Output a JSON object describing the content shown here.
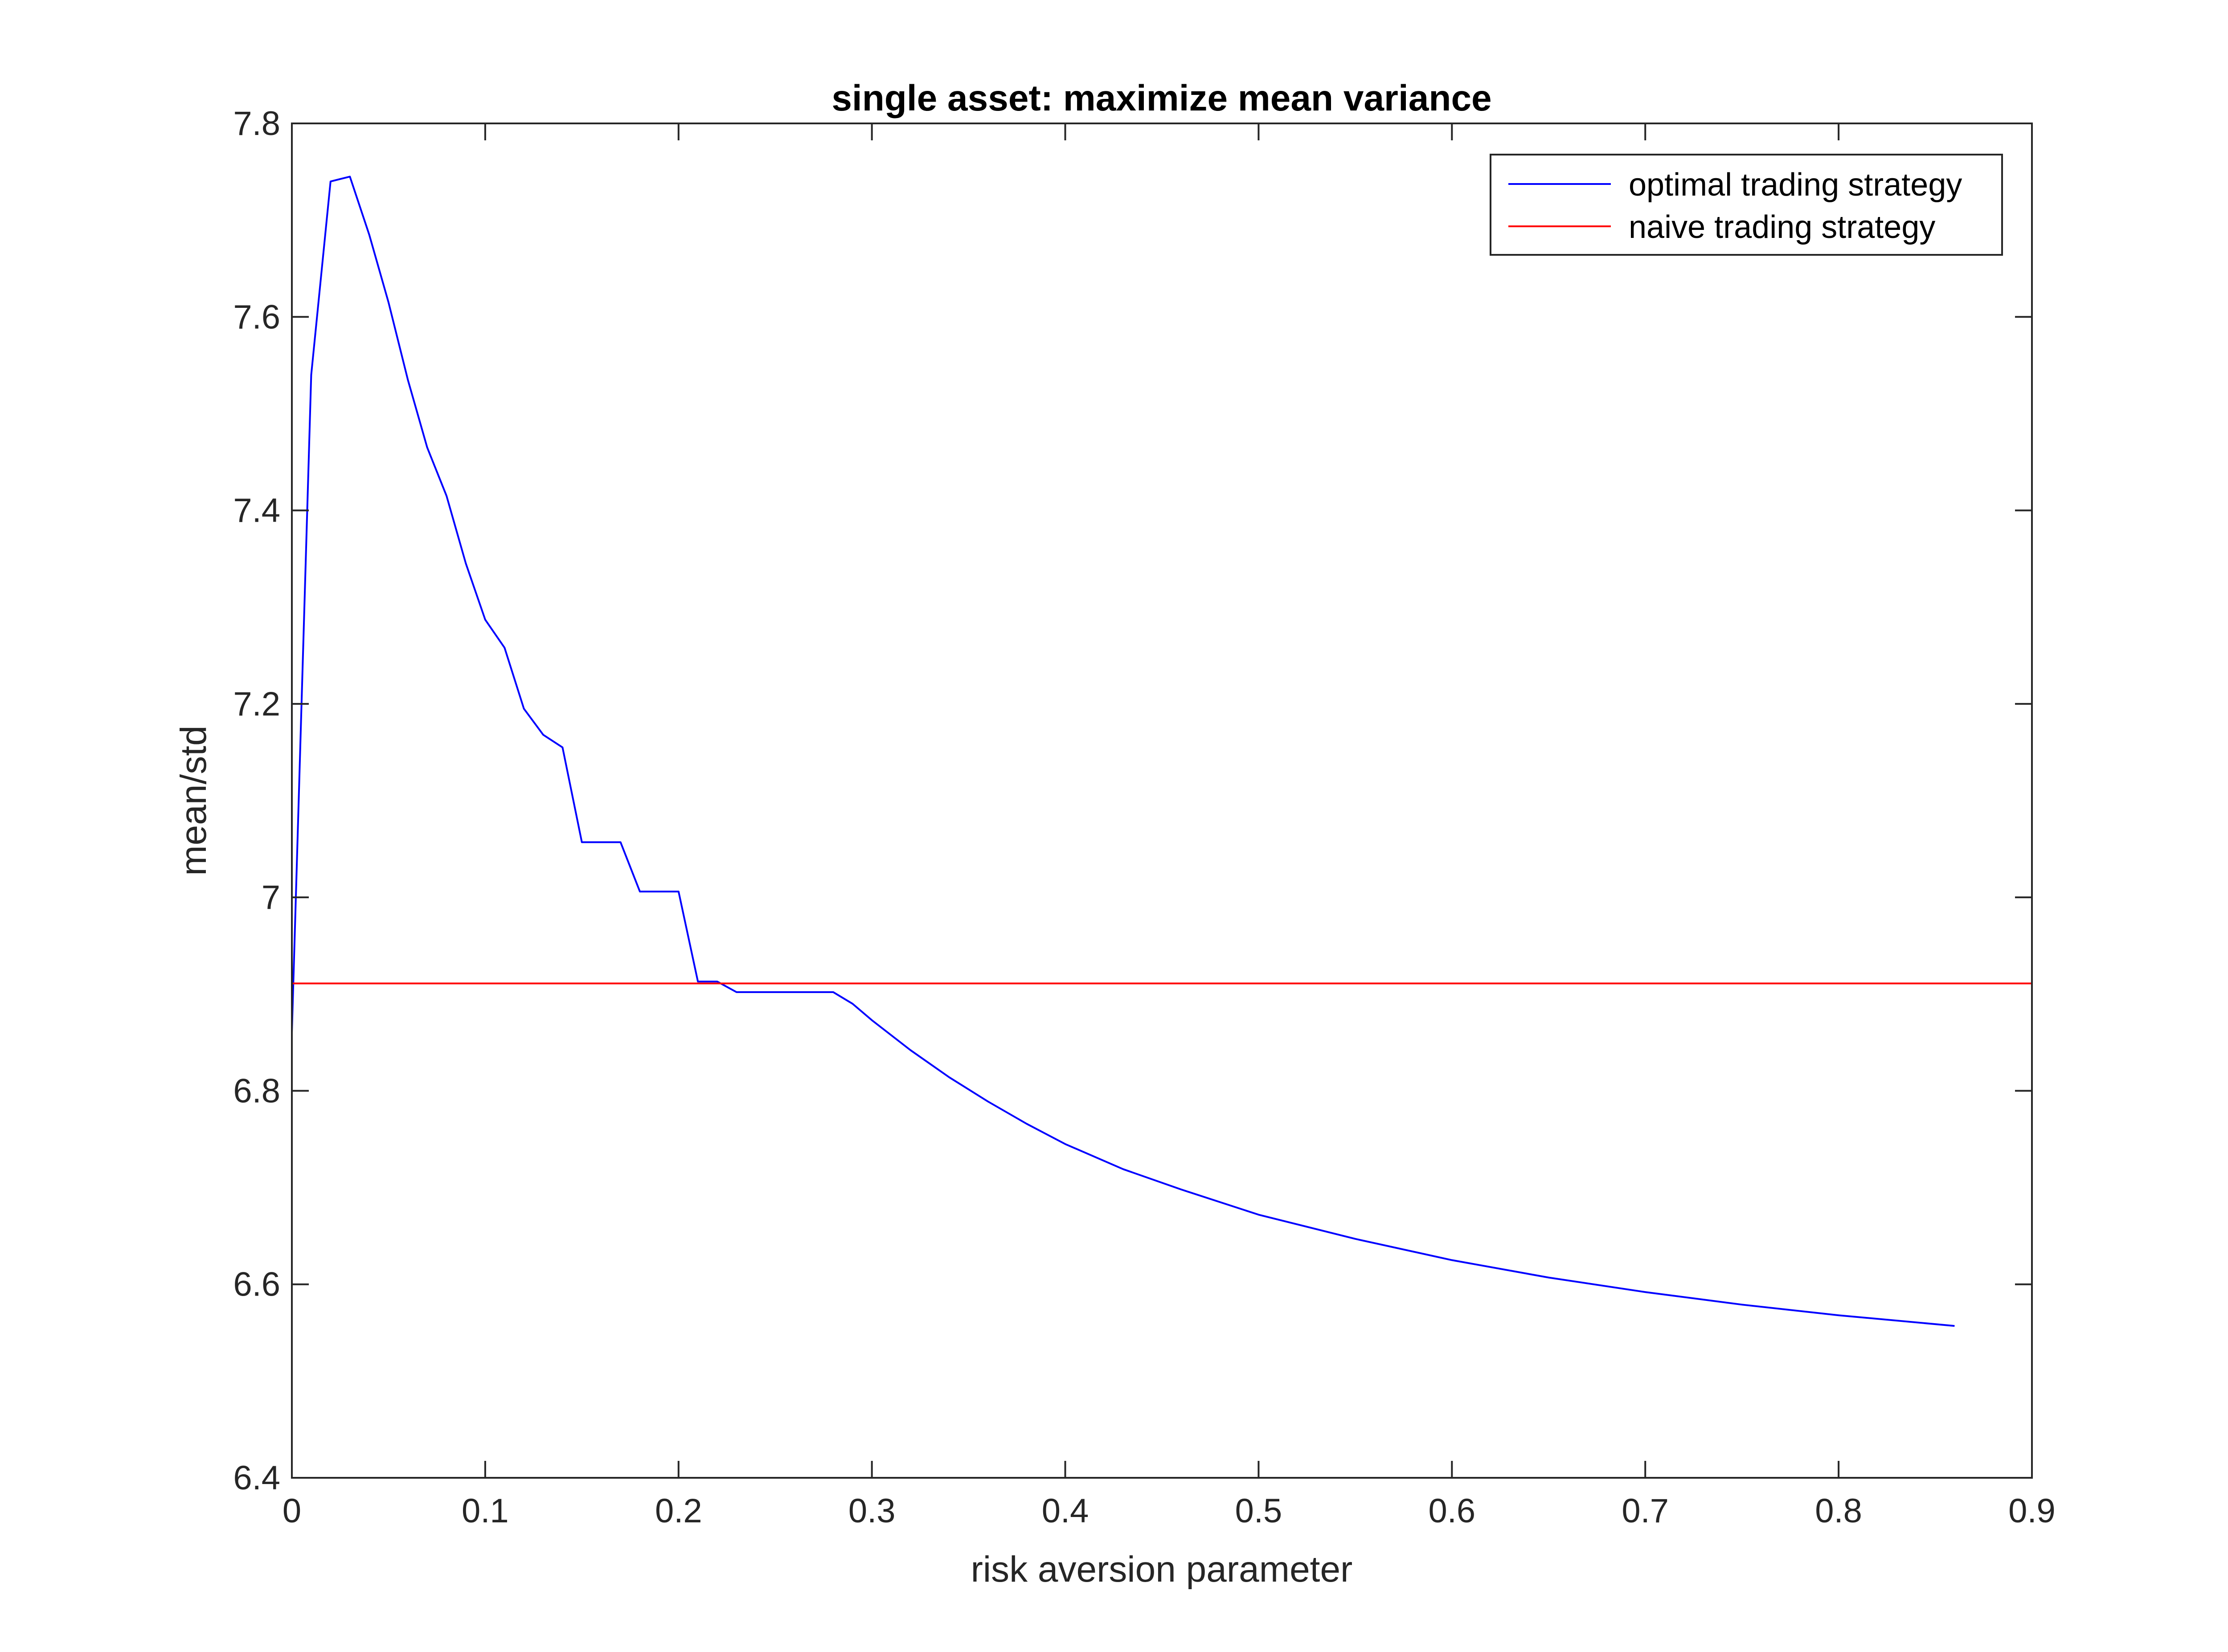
{
  "chart_data": {
    "type": "line",
    "title": "single asset: maximize mean variance",
    "xlabel": "risk aversion parameter",
    "ylabel": "mean/std",
    "xlim": [
      0,
      0.9
    ],
    "ylim": [
      6.4,
      7.8
    ],
    "xticks": [
      0,
      0.1,
      0.2,
      0.3,
      0.4,
      0.5,
      0.6,
      0.7,
      0.8,
      0.9
    ],
    "xtick_labels": [
      "0",
      "0.1",
      "0.2",
      "0.3",
      "0.4",
      "0.5",
      "0.6",
      "0.7",
      "0.8",
      "0.9"
    ],
    "yticks": [
      6.4,
      6.6,
      6.8,
      7.0,
      7.2,
      7.4,
      7.6,
      7.8
    ],
    "ytick_labels": [
      "6.4",
      "6.6",
      "6.8",
      "7",
      "7.2",
      "7.4",
      "7.6",
      "7.8"
    ],
    "grid": false,
    "legend_position": "top-right",
    "series": [
      {
        "name": "optimal trading strategy",
        "color": "#0000ff",
        "x": [
          0,
          0.01,
          0.02,
          0.03,
          0.04,
          0.05,
          0.06,
          0.07,
          0.08,
          0.09,
          0.1,
          0.11,
          0.12,
          0.13,
          0.14,
          0.15,
          0.16,
          0.17,
          0.18,
          0.19,
          0.2,
          0.21,
          0.22,
          0.23,
          0.24,
          0.25,
          0.26,
          0.27,
          0.28,
          0.29,
          0.3,
          0.32,
          0.34,
          0.36,
          0.38,
          0.4,
          0.43,
          0.46,
          0.5,
          0.55,
          0.6,
          0.65,
          0.7,
          0.75,
          0.8,
          0.86
        ],
        "y": [
          6.86,
          7.54,
          7.74,
          7.745,
          7.685,
          7.615,
          7.535,
          7.465,
          7.415,
          7.345,
          7.287,
          7.258,
          7.195,
          7.168,
          7.155,
          7.057,
          7.057,
          7.057,
          7.006,
          7.006,
          7.006,
          6.913,
          6.913,
          6.902,
          6.902,
          6.902,
          6.902,
          6.902,
          6.902,
          6.89,
          6.873,
          6.842,
          6.814,
          6.789,
          6.766,
          6.745,
          6.719,
          6.698,
          6.672,
          6.647,
          6.625,
          6.607,
          6.592,
          6.579,
          6.568,
          6.557
        ]
      },
      {
        "name": "naive trading strategy",
        "color": "#ff0000",
        "x": [
          0,
          0.9
        ],
        "y": [
          6.911,
          6.911
        ]
      }
    ]
  }
}
